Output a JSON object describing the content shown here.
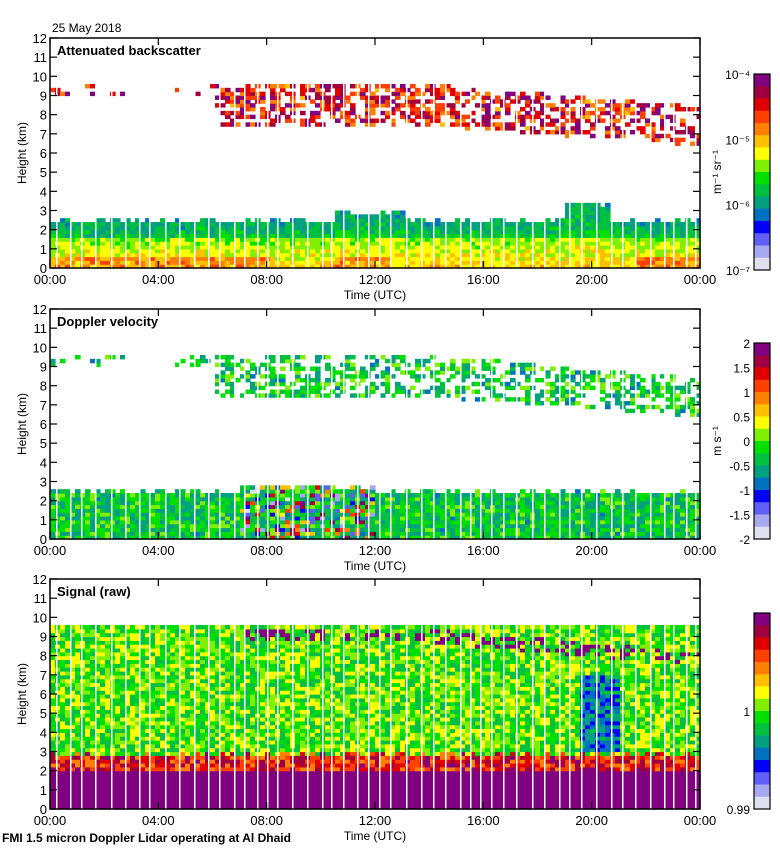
{
  "header": {
    "date": "25 May 2018"
  },
  "footer": {
    "caption": "FMI 1.5 micron Doppler Lidar operating at Al Dhaid"
  },
  "chart_data": [
    {
      "type": "heatmap",
      "title": "Attenuated backscatter",
      "xlabel": "Time (UTC)",
      "ylabel": "Height (km)",
      "x_ticks": [
        "00:00",
        "04:00",
        "08:00",
        "12:00",
        "16:00",
        "20:00",
        "00:00"
      ],
      "xlim_hours": [
        0,
        24
      ],
      "y_ticks": [
        0,
        1,
        2,
        3,
        4,
        5,
        6,
        7,
        8,
        9,
        10,
        11,
        12
      ],
      "ylim": [
        0,
        12
      ],
      "colorbar": {
        "label": "m⁻¹ sr⁻¹",
        "scale": "log",
        "range": [
          1e-07,
          0.0001
        ],
        "tick_labels": [
          "10⁻⁴",
          "10⁻⁵",
          "10⁻⁶",
          "10⁻⁷"
        ],
        "tick_values": [
          0.0001,
          1e-05,
          1e-06,
          1e-07
        ]
      },
      "features": {
        "boundary_layer_top_km": 2.3,
        "cloud_layer_km": [
          7,
          9.6
        ],
        "notes": "Aerosol layer 0-2.5 km (green/yellow), cirrus 7-9.5 km (orange/purple), descending toward 00:00"
      }
    },
    {
      "type": "heatmap",
      "title": "Doppler velocity",
      "xlabel": "Time (UTC)",
      "ylabel": "Height (km)",
      "x_ticks": [
        "00:00",
        "04:00",
        "08:00",
        "12:00",
        "16:00",
        "20:00",
        "00:00"
      ],
      "xlim_hours": [
        0,
        24
      ],
      "y_ticks": [
        0,
        1,
        2,
        3,
        4,
        5,
        6,
        7,
        8,
        9,
        10,
        11,
        12
      ],
      "ylim": [
        0,
        12
      ],
      "colorbar": {
        "label": "m s⁻¹",
        "scale": "linear",
        "range": [
          -2,
          2
        ],
        "tick_labels": [
          "2",
          "1.5",
          "1",
          "0.5",
          "0",
          "-0.5",
          "-1",
          "-1.5",
          "-2"
        ],
        "tick_values": [
          2,
          1.5,
          1,
          0.5,
          0,
          -0.5,
          -1,
          -1.5,
          -2
        ]
      },
      "features": {
        "notes": "Mostly near-zero velocities (green); strong mixed up/down motion 07:00-12:00 below 2.7 km"
      }
    },
    {
      "type": "heatmap",
      "title": "Signal (raw)",
      "xlabel": "Time (UTC)",
      "ylabel": "Height (km)",
      "x_ticks": [
        "00:00",
        "04:00",
        "08:00",
        "12:00",
        "16:00",
        "20:00",
        "00:00"
      ],
      "xlim_hours": [
        0,
        24
      ],
      "y_ticks": [
        0,
        1,
        2,
        3,
        4,
        5,
        6,
        7,
        8,
        9,
        10,
        11,
        12
      ],
      "ylim": [
        0,
        12
      ],
      "colorbar": {
        "label": "",
        "scale": "linear",
        "range": [
          0.99,
          1.01
        ],
        "tick_labels": [
          "1",
          "0.99"
        ],
        "tick_values": [
          1,
          0.99
        ]
      },
      "features": {
        "data_top_km": 9.6,
        "notes": "Strong signal (purple) below ~2 km; noisy green/yellow above; cloud returns 7-9 km"
      }
    }
  ],
  "colormap": [
    "#e0e0ee",
    "#a8a8f0",
    "#6060f8",
    "#0000ff",
    "#0070c0",
    "#00a080",
    "#00c040",
    "#00e000",
    "#80f000",
    "#ffff00",
    "#ffc000",
    "#ff8000",
    "#ff4000",
    "#e00000",
    "#a00040",
    "#800080"
  ]
}
